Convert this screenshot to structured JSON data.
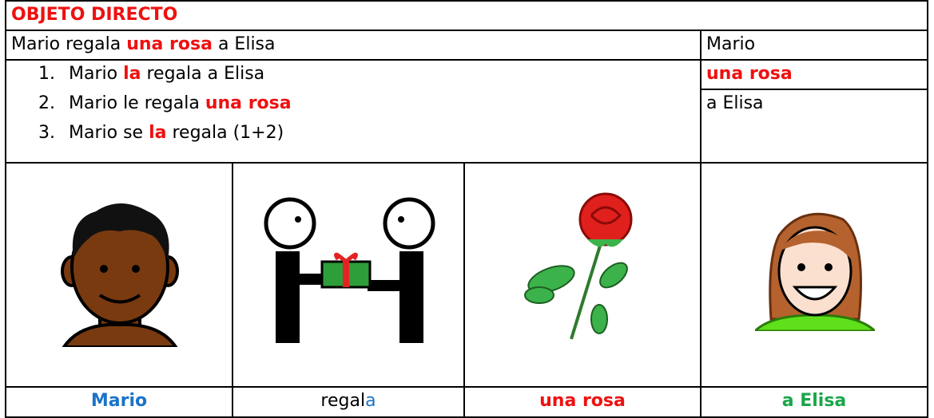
{
  "title": "OBJETO DIRECTO",
  "sentence": [
    "Mario regala",
    "una rosa",
    "a Elisa"
  ],
  "roles": [
    "Mario",
    "una rosa",
    "a Elisa"
  ],
  "list": [
    {
      "number": "1.",
      "parts": [
        "Mario",
        "la",
        "regala a Elisa"
      ]
    },
    {
      "number": "2.",
      "parts": [
        "Mario le regala",
        "una rosa"
      ]
    },
    {
      "number": "3.",
      "parts": [
        "Mario se",
        "la",
        "regala (1+2)"
      ]
    }
  ],
  "labels": [
    "Mario",
    [
      "regal",
      "a"
    ],
    "una rosa",
    "a Elisa"
  ]
}
